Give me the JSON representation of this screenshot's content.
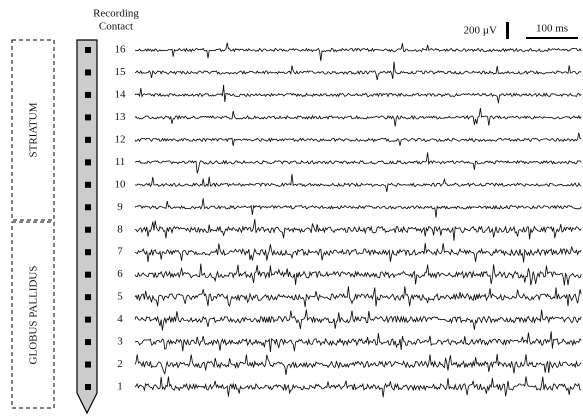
{
  "header": {
    "line1": "Recording",
    "line2": "Contact"
  },
  "scale": {
    "voltage": "200 µV",
    "time": "100 ms"
  },
  "regions": {
    "upper": "STRIATUM",
    "lower": "GLOBUS PALLIDUS"
  },
  "channels": [
    16,
    15,
    14,
    13,
    12,
    11,
    10,
    9,
    8,
    7,
    6,
    5,
    4,
    3,
    2,
    1
  ]
}
